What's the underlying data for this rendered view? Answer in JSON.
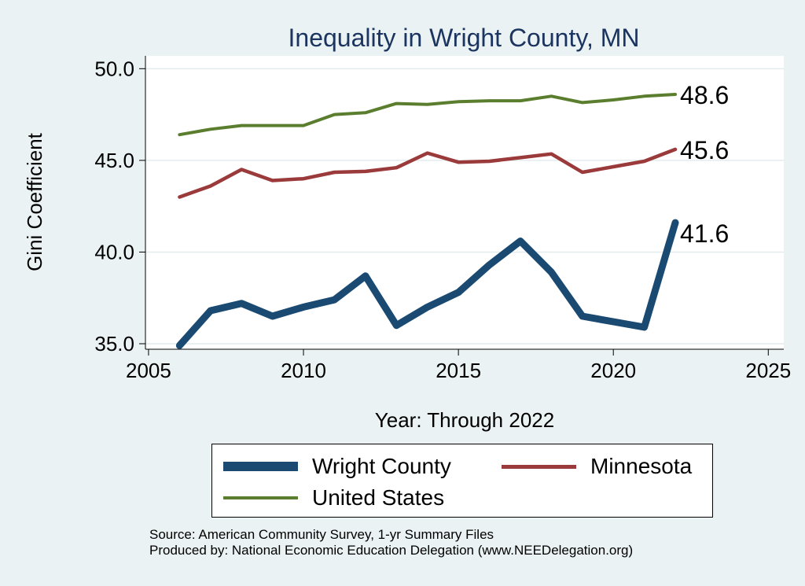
{
  "chart_data": {
    "type": "line",
    "title": "Inequality in Wright County, MN",
    "xlabel": "Year: Through 2022",
    "ylabel": "Gini Coefficient",
    "xlim": [
      2004.9,
      2025.5
    ],
    "ylim": [
      34.7,
      50.7
    ],
    "xticks": [
      2005,
      2010,
      2015,
      2020,
      2025
    ],
    "yticks": [
      35,
      40,
      45,
      50
    ],
    "ytick_labels": [
      "35.0",
      "40.0",
      "45.0",
      "50.0"
    ],
    "grid": "horizontal",
    "legend_position": "bottom",
    "x": [
      2006,
      2007,
      2008,
      2009,
      2010,
      2011,
      2012,
      2013,
      2014,
      2015,
      2016,
      2017,
      2018,
      2019,
      2020,
      2021,
      2022
    ],
    "series": [
      {
        "name": "Wright County",
        "color": "#1a4a72",
        "values": [
          34.9,
          36.8,
          37.2,
          36.5,
          37.0,
          37.4,
          38.7,
          36.0,
          37.0,
          37.8,
          39.3,
          40.6,
          38.9,
          36.5,
          36.2,
          35.9,
          41.6
        ],
        "end_label": "41.6"
      },
      {
        "name": "Minnesota",
        "color": "#9a3a3a",
        "values": [
          43.0,
          43.6,
          44.5,
          43.9,
          44.0,
          44.35,
          44.4,
          44.6,
          45.4,
          44.9,
          44.95,
          45.15,
          45.35,
          44.35,
          44.65,
          44.95,
          45.6
        ],
        "end_label": "45.6"
      },
      {
        "name": "United States",
        "color": "#5a7d2e",
        "values": [
          46.4,
          46.7,
          46.9,
          46.9,
          46.9,
          47.5,
          47.6,
          48.1,
          48.05,
          48.2,
          48.25,
          48.25,
          48.5,
          48.15,
          48.3,
          48.5,
          48.6
        ],
        "end_label": "48.6"
      }
    ]
  },
  "notes": {
    "source": "Source: American Community Survey, 1-yr Summary Files",
    "producer": "Produced by: National Economic Education Delegation (www.NEEDelegation.org)"
  }
}
